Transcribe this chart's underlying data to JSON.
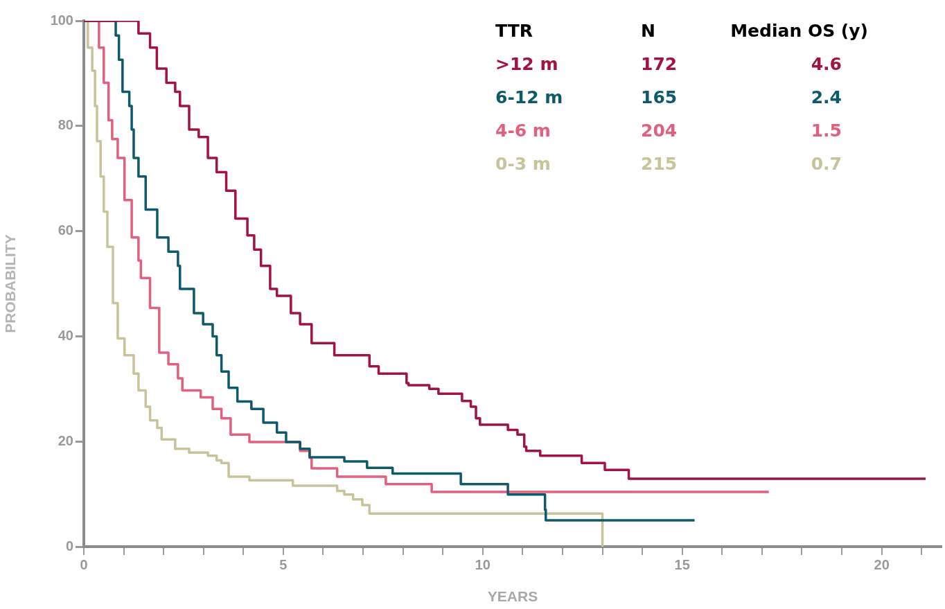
{
  "chart_data": {
    "type": "step",
    "xlabel": "YEARS",
    "ylabel": "PROBABILITY",
    "legend_title": "TTR",
    "legend": "top right",
    "grid": false,
    "marker": "none",
    "xlim": [
      0,
      21.5
    ],
    "ylim": [
      0,
      100
    ],
    "xticks": [
      0,
      {
        "value": 1,
        "label": null
      },
      {
        "value": 2,
        "label": null
      },
      {
        "value": 3,
        "label": null
      },
      {
        "value": 4,
        "label": null
      },
      5,
      {
        "value": 6,
        "label": null
      },
      {
        "value": 7,
        "label": null
      },
      {
        "value": 8,
        "label": null
      },
      {
        "value": 9,
        "label": null
      },
      10,
      {
        "value": 11,
        "label": null
      },
      {
        "value": 12,
        "label": null
      },
      {
        "value": 13,
        "label": null
      },
      {
        "value": 14,
        "label": null
      },
      15,
      {
        "value": 16,
        "label": null
      },
      {
        "value": 17,
        "label": null
      },
      {
        "value": 18,
        "label": null
      },
      {
        "value": 19,
        "label": null
      },
      20,
      {
        "value": 21,
        "label": null
      }
    ],
    "yticks": [
      0,
      20,
      40,
      60,
      80,
      100
    ],
    "annotations": [
      "N",
      "Median OS (y)",
      "172",
      "4.6",
      "165",
      "2.4",
      "204",
      "1.5",
      "215",
      "0.7"
    ],
    "series": [
      {
        "name": ">12 m",
        "color": "#a3133f",
        "x": [
          0,
          1.16,
          1.37,
          1.66,
          1.83,
          2.07,
          2.29,
          2.41,
          2.64,
          2.88,
          3.11,
          3.33,
          3.57,
          3.8,
          4.1,
          4.27,
          4.44,
          4.67,
          4.84,
          5.19,
          5.42,
          5.71,
          6.28,
          6.87,
          7.16,
          7.39,
          7.97,
          8.09,
          8.14,
          8.66,
          8.89,
          9.41,
          9.48,
          9.7,
          9.83,
          9.93,
          10.57,
          10.63,
          10.87,
          11.04,
          11.09,
          11.44,
          12.48,
          13.06,
          13.66,
          21.1
        ],
        "values": [
          100,
          100,
          97.6,
          94.9,
          90.9,
          88.2,
          86.5,
          83.8,
          79.3,
          77.9,
          73.9,
          71.2,
          67.7,
          62.4,
          59.2,
          56.5,
          53.4,
          49,
          47.7,
          44.4,
          42.3,
          38.7,
          36.4,
          36.4,
          34.3,
          32.9,
          32.9,
          31.1,
          30.7,
          30,
          29.1,
          29.1,
          27.7,
          26.6,
          24.4,
          23.2,
          23.2,
          22.2,
          21.3,
          19,
          18.2,
          17.3,
          15.9,
          14.6,
          12.9,
          12.9
        ]
      },
      {
        "name": "6-12 m",
        "color": "#0e5a6b",
        "x": [
          0,
          0.56,
          0.8,
          0.88,
          0.97,
          1.14,
          1.2,
          1.25,
          1.37,
          1.55,
          1.84,
          2.12,
          2.36,
          2.41,
          2.76,
          2.99,
          3.23,
          3.33,
          3.45,
          3.63,
          3.85,
          4.2,
          4.5,
          4.84,
          5.07,
          5.42,
          5.66,
          6.53,
          7.1,
          7.74,
          9.45,
          10.63,
          11.56,
          11.58,
          15.31
        ],
        "values": [
          100,
          100,
          97.2,
          92.6,
          86.5,
          83.8,
          79.3,
          73.9,
          70.4,
          64.1,
          58.8,
          56.1,
          53.4,
          49,
          44.4,
          42.3,
          40,
          36.4,
          33.3,
          30.2,
          27.6,
          26.2,
          23.6,
          21.7,
          19.9,
          18.6,
          17,
          16.2,
          15,
          13.9,
          11.9,
          9.9,
          7,
          5,
          5
        ]
      },
      {
        "name": "4-6 m",
        "color": "#e0607e",
        "x": [
          0,
          0.28,
          0.38,
          0.5,
          0.62,
          0.71,
          0.85,
          1.02,
          1.2,
          1.37,
          1.43,
          1.66,
          1.89,
          2.12,
          2.36,
          2.47,
          2.93,
          3.23,
          3.45,
          3.68,
          4.15,
          5.42,
          5.66,
          5.71,
          6.35,
          7.57,
          8.72,
          17.17
        ],
        "values": [
          100,
          100,
          94.9,
          88.2,
          81.1,
          77.5,
          73.9,
          65.9,
          58.8,
          54.4,
          51.1,
          45.4,
          36.9,
          34.7,
          32,
          29.7,
          28.4,
          26.2,
          24.4,
          21.3,
          19.9,
          18.2,
          16.9,
          14.9,
          13.3,
          11.9,
          10.4,
          10.4
        ]
      },
      {
        "name": "0-3 m",
        "color": "#c8c39a",
        "x": [
          0,
          0.1,
          0.21,
          0.28,
          0.33,
          0.42,
          0.5,
          0.59,
          0.73,
          0.85,
          1.02,
          1.25,
          1.37,
          1.55,
          1.66,
          1.84,
          1.95,
          2.29,
          2.64,
          3.11,
          3.33,
          3.45,
          3.63,
          4.15,
          5.24,
          6.35,
          6.53,
          6.75,
          6.98,
          7.16,
          13,
          13
        ],
        "values": [
          100,
          94.9,
          90.5,
          83.8,
          77.1,
          70.4,
          63.7,
          57,
          46.3,
          39.6,
          36.4,
          32.9,
          29.7,
          26.6,
          24,
          22.6,
          20.4,
          18.6,
          17.9,
          17.3,
          16.4,
          15.9,
          13.3,
          12.6,
          11.6,
          10.6,
          9.9,
          9,
          7.9,
          6.3,
          6.3,
          0
        ]
      }
    ]
  }
}
